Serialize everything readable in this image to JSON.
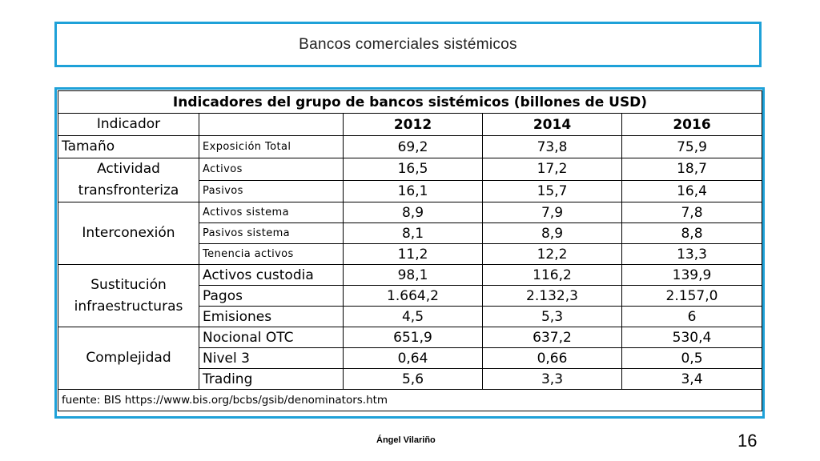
{
  "slide": {
    "title": "Bancos comerciales sistémicos",
    "footer_author": "Ángel Vilariño",
    "page_number": "16"
  },
  "table": {
    "caption": "Indicadores del grupo de bancos sistémicos (billones de USD)",
    "header": {
      "indicator": "Indicador",
      "years": [
        "2012",
        "2014",
        "2016"
      ]
    },
    "groups": [
      {
        "name": "Tamaño",
        "rows": [
          {
            "label": "Exposición Total",
            "values": [
              "69,2",
              "73,8",
              "75,9"
            ]
          }
        ]
      },
      {
        "name_lines": [
          "Actividad",
          "transfronteriza"
        ],
        "rows": [
          {
            "label": "Activos",
            "values": [
              "16,5",
              "17,2",
              "18,7"
            ]
          },
          {
            "label": "Pasivos",
            "values": [
              "16,1",
              "15,7",
              "16,4"
            ]
          }
        ]
      },
      {
        "name": "Interconexión",
        "rows": [
          {
            "label": "Activos sistema",
            "values": [
              "8,9",
              "7,9",
              "7,8"
            ]
          },
          {
            "label": "Pasivos sistema",
            "values": [
              "8,1",
              "8,9",
              "8,8"
            ]
          },
          {
            "label": "Tenencia activos",
            "values": [
              "11,2",
              "12,2",
              "13,3"
            ]
          }
        ]
      },
      {
        "name_lines": [
          "Sustitución",
          "infraestructuras"
        ],
        "rows": [
          {
            "label": "Activos custodia",
            "values": [
              "98,1",
              "116,2",
              "139,9"
            ]
          },
          {
            "label": "Pagos",
            "values": [
              "1.664,2",
              "2.132,3",
              "2.157,0"
            ]
          },
          {
            "label": "Emisiones",
            "values": [
              "4,5",
              "5,3",
              "6"
            ]
          }
        ]
      },
      {
        "name": "Complejidad",
        "rows": [
          {
            "label": "Nocional OTC",
            "values": [
              "651,9",
              "637,2",
              "530,4"
            ]
          },
          {
            "label": "Nivel 3",
            "values": [
              "0,64",
              "0,66",
              "0,5"
            ]
          },
          {
            "label": "Trading",
            "values": [
              "5,6",
              "3,3",
              "3,4"
            ]
          }
        ]
      }
    ],
    "source": "fuente: BIS https://www.bis.org/bcbs/gsib/denominators.htm"
  }
}
